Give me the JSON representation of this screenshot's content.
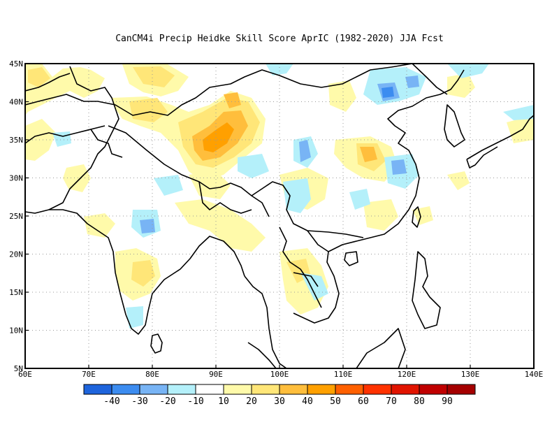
{
  "title": "CanCM4i Precip Heidke Skill Score AprIC (1982-2020) JJA Fcst",
  "map": {
    "lon_range": [
      60,
      140
    ],
    "lat_range": [
      5,
      45
    ],
    "lon_ticks": [
      "60E",
      "70E",
      "80E",
      "90E",
      "100E",
      "110E",
      "120E",
      "130E",
      "140E"
    ],
    "lat_ticks": [
      "5N",
      "10N",
      "15N",
      "20N",
      "25N",
      "30N",
      "35N",
      "40N",
      "45N"
    ],
    "grid": "dotted"
  },
  "colorbar": {
    "labels": [
      "-40",
      "-30",
      "-20",
      "-10",
      "10",
      "20",
      "30",
      "40",
      "50",
      "60",
      "70",
      "80",
      "90"
    ],
    "colors": [
      "#1e64dc",
      "#3c8cf0",
      "#78b4f5",
      "#b4f0fa",
      "#ffffff",
      "#fffaaa",
      "#ffe678",
      "#ffbe3c",
      "#ffa000",
      "#ff6000",
      "#ff3200",
      "#e11400",
      "#c00000",
      "#a50000"
    ]
  },
  "colors": {
    "coast": "#000000",
    "grid": "#999999"
  }
}
